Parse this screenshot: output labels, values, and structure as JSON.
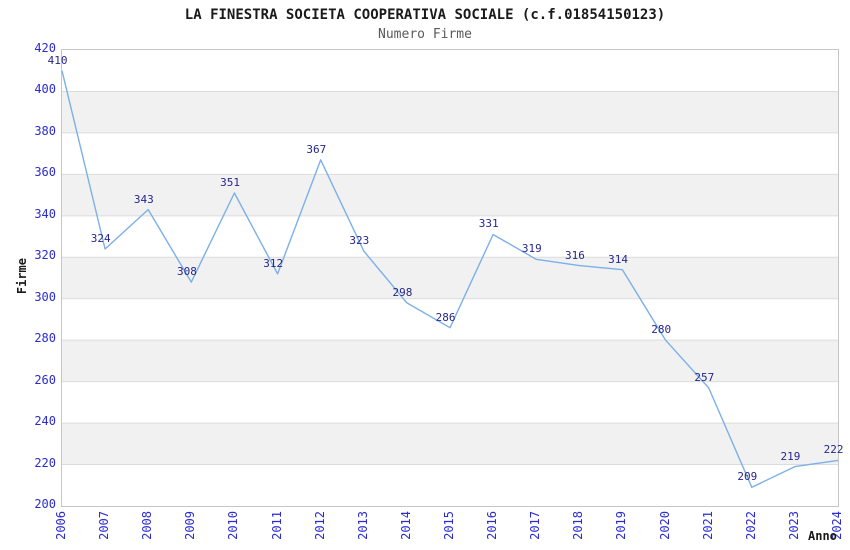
{
  "header": {
    "title": "LA FINESTRA SOCIETA COOPERATIVA SOCIALE (c.f.01854150123)",
    "subtitle": "Numero Firme"
  },
  "chart_data": {
    "type": "line",
    "title": "LA FINESTRA SOCIETA COOPERATIVA SOCIALE (c.f.01854150123)",
    "subtitle": "Numero Firme",
    "xlabel": "Anno",
    "ylabel": "Firme",
    "x": [
      2006,
      2007,
      2008,
      2009,
      2010,
      2011,
      2012,
      2013,
      2014,
      2015,
      2016,
      2017,
      2018,
      2019,
      2020,
      2021,
      2022,
      2023,
      2024
    ],
    "series": [
      {
        "name": "Numero Firme",
        "values": [
          410,
          324,
          343,
          308,
          351,
          312,
          367,
          323,
          298,
          286,
          331,
          319,
          316,
          314,
          280,
          257,
          209,
          219,
          222
        ]
      }
    ],
    "ylim": [
      200,
      420
    ],
    "ytick_step": 20,
    "grid": true,
    "legend_position": "none",
    "show_point_labels": true,
    "colors": {
      "line": "#7cb0e8",
      "tick_label": "#2b2bd0",
      "point_label": "#26268c",
      "band_gray": "#f1f1f1",
      "gridline": "#dcdcdc",
      "plot_border": "#c6c6c6",
      "title": "#1a1a1a",
      "subtitle": "#5a5a5a"
    }
  }
}
